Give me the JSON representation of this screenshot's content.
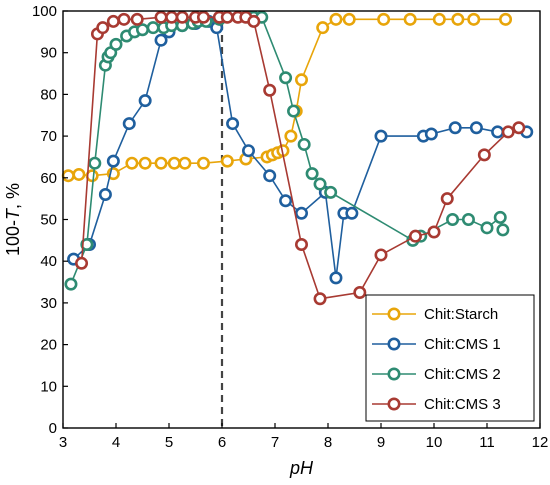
{
  "chart_data": {
    "type": "line",
    "xlabel": "pH",
    "ylabel": "100-T, %",
    "xlim": [
      3,
      12
    ],
    "ylim": [
      0,
      100
    ],
    "xticks": [
      3,
      4,
      5,
      6,
      7,
      8,
      9,
      10,
      11,
      12
    ],
    "yticks": [
      0,
      10,
      20,
      30,
      40,
      50,
      60,
      70,
      80,
      90,
      100
    ],
    "grid": false,
    "legend_position": "bottom-right",
    "annotations": [
      {
        "type": "vertical-dashed-line",
        "x": 6
      }
    ],
    "series": [
      {
        "name": "Chit:Starch",
        "color": "#e8a50a",
        "points": [
          [
            3.1,
            60.5
          ],
          [
            3.3,
            60.8
          ],
          [
            3.55,
            60.5
          ],
          [
            3.95,
            61
          ],
          [
            4.3,
            63.5
          ],
          [
            4.55,
            63.5
          ],
          [
            4.85,
            63.5
          ],
          [
            5.1,
            63.5
          ],
          [
            5.3,
            63.5
          ],
          [
            5.65,
            63.5
          ],
          [
            6.1,
            64
          ],
          [
            6.45,
            64.5
          ],
          [
            6.85,
            65
          ],
          [
            6.95,
            65.5
          ],
          [
            7.05,
            66
          ],
          [
            7.15,
            66.5
          ],
          [
            7.3,
            70
          ],
          [
            7.4,
            76
          ],
          [
            7.5,
            83.5
          ],
          [
            7.9,
            96
          ],
          [
            8.15,
            98
          ],
          [
            8.4,
            98
          ],
          [
            9.05,
            98
          ],
          [
            9.55,
            98
          ],
          [
            10.1,
            98
          ],
          [
            10.45,
            98
          ],
          [
            10.75,
            98
          ],
          [
            11.35,
            98
          ]
        ]
      },
      {
        "name": "Chit:CMS 1",
        "color": "#1f5f9e",
        "points": [
          [
            3.2,
            40.5
          ],
          [
            3.5,
            44
          ],
          [
            3.8,
            56
          ],
          [
            3.95,
            64
          ],
          [
            4.25,
            73
          ],
          [
            4.55,
            78.5
          ],
          [
            4.85,
            93
          ],
          [
            5.0,
            95
          ],
          [
            5.25,
            96.5
          ],
          [
            5.5,
            97
          ],
          [
            5.75,
            97.5
          ],
          [
            5.9,
            96
          ],
          [
            6.2,
            73
          ],
          [
            6.5,
            66.5
          ],
          [
            6.9,
            60.5
          ],
          [
            7.2,
            54.5
          ],
          [
            7.5,
            51.5
          ],
          [
            7.95,
            56.5
          ],
          [
            8.15,
            36
          ],
          [
            8.3,
            51.5
          ],
          [
            8.45,
            51.5
          ],
          [
            9.0,
            70
          ],
          [
            9.8,
            70
          ],
          [
            9.95,
            70.5
          ],
          [
            10.4,
            72
          ],
          [
            10.8,
            72
          ],
          [
            11.2,
            71
          ],
          [
            11.75,
            71
          ]
        ]
      },
      {
        "name": "Chit:CMS 2",
        "color": "#2e8b72",
        "points": [
          [
            3.15,
            34.5
          ],
          [
            3.45,
            44
          ],
          [
            3.6,
            63.5
          ],
          [
            3.8,
            87
          ],
          [
            3.85,
            89
          ],
          [
            3.9,
            90
          ],
          [
            4.0,
            92
          ],
          [
            4.2,
            94
          ],
          [
            4.35,
            95
          ],
          [
            4.5,
            95.5
          ],
          [
            4.7,
            96
          ],
          [
            4.9,
            96
          ],
          [
            5.05,
            96.5
          ],
          [
            5.25,
            96.5
          ],
          [
            5.45,
            97
          ],
          [
            5.55,
            97.5
          ],
          [
            5.7,
            97.5
          ],
          [
            5.95,
            98
          ],
          [
            6.5,
            98.5
          ],
          [
            6.6,
            98.5
          ],
          [
            6.75,
            98.5
          ],
          [
            7.2,
            84
          ],
          [
            7.35,
            76
          ],
          [
            7.55,
            68
          ],
          [
            7.7,
            61
          ],
          [
            7.85,
            58.5
          ],
          [
            8.05,
            56.5
          ],
          [
            9.6,
            45
          ],
          [
            9.75,
            46
          ],
          [
            10.35,
            50
          ],
          [
            10.65,
            50
          ],
          [
            11.0,
            48
          ],
          [
            11.25,
            50.5
          ],
          [
            11.3,
            47.5
          ]
        ]
      },
      {
        "name": "Chit:CMS 3",
        "color": "#a83a32",
        "points": [
          [
            3.35,
            39.5
          ],
          [
            3.65,
            94.5
          ],
          [
            3.75,
            96
          ],
          [
            3.95,
            97.5
          ],
          [
            4.15,
            98
          ],
          [
            4.4,
            98
          ],
          [
            4.85,
            98.5
          ],
          [
            5.05,
            98.5
          ],
          [
            5.25,
            98.5
          ],
          [
            5.5,
            98.5
          ],
          [
            5.65,
            98.5
          ],
          [
            5.95,
            98.5
          ],
          [
            6.1,
            98.5
          ],
          [
            6.3,
            98.5
          ],
          [
            6.45,
            98.5
          ],
          [
            6.6,
            97.5
          ],
          [
            6.9,
            81
          ],
          [
            7.5,
            44
          ],
          [
            7.85,
            31
          ],
          [
            8.6,
            32.5
          ],
          [
            9.0,
            41.5
          ],
          [
            9.65,
            46
          ],
          [
            10.0,
            47
          ],
          [
            10.25,
            55
          ],
          [
            10.95,
            65.5
          ],
          [
            11.4,
            71
          ],
          [
            11.6,
            72
          ]
        ]
      }
    ]
  }
}
